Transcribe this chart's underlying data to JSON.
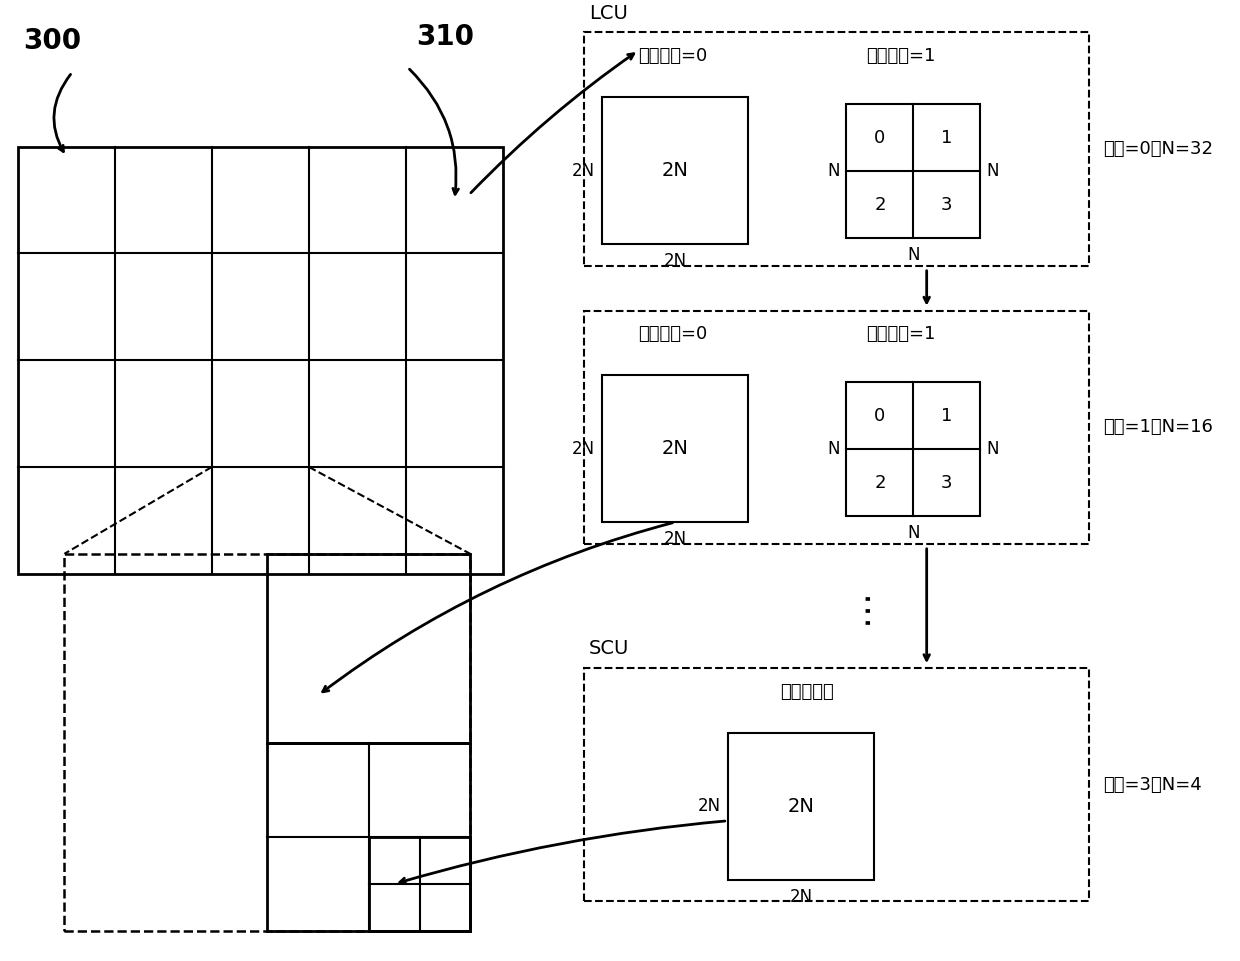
{
  "bg_color": "#ffffff",
  "label_300": "300",
  "label_310": "310",
  "label_LCU": "LCU",
  "label_SCU": "SCU",
  "panel1_title_left": "分区信息=0",
  "panel1_title_right": "分区信息=1",
  "panel2_title_left": "分区信息=0",
  "panel2_title_right": "分区信息=1",
  "panel3_title": "无分区信息",
  "depth0_label": "深度=0，N=32",
  "depth1_label": "深度=1，N=16",
  "depth3_label": "深度=3，N=4",
  "label_2N": "2N",
  "label_N": "N",
  "grid_rows": 4,
  "grid_cols": 5
}
